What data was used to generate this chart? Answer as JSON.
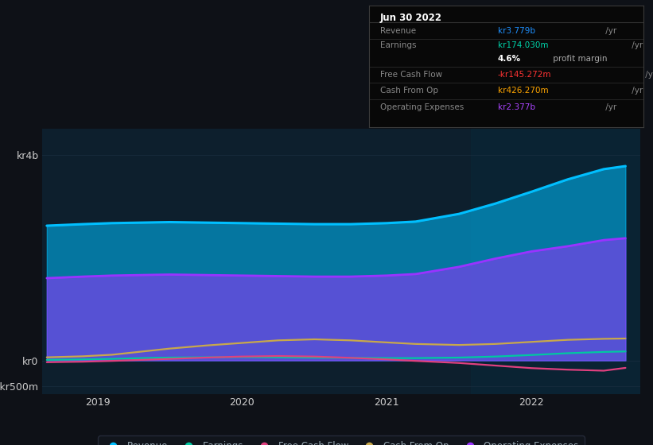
{
  "bg_color": "#0e1117",
  "plot_bg_color": "#0d1f2d",
  "yticks_labels": [
    "kr4b",
    "kr0",
    "-kr500m"
  ],
  "yticks_values": [
    4000000000.0,
    0,
    -500000000.0
  ],
  "ylim": [
    -650000000.0,
    4500000000.0
  ],
  "xlim_start": 2018.62,
  "xlim_end": 2022.75,
  "xtick_labels": [
    "2019",
    "2020",
    "2021",
    "2022"
  ],
  "xtick_positions": [
    2019,
    2020,
    2021,
    2022
  ],
  "series_order": [
    "Revenue",
    "Operating Expenses",
    "Cash From Op",
    "Earnings",
    "Free Cash Flow"
  ],
  "series": {
    "Revenue": {
      "color": "#00bfff",
      "fill": true,
      "fill_alpha": 0.55,
      "linewidth": 2.2,
      "x": [
        2018.65,
        2018.9,
        2019.1,
        2019.3,
        2019.5,
        2019.75,
        2020.0,
        2020.25,
        2020.5,
        2020.75,
        2021.0,
        2021.2,
        2021.5,
        2021.75,
        2022.0,
        2022.25,
        2022.5,
        2022.65
      ],
      "y": [
        2620000000.0,
        2650000000.0,
        2670000000.0,
        2680000000.0,
        2690000000.0,
        2680000000.0,
        2670000000.0,
        2660000000.0,
        2650000000.0,
        2650000000.0,
        2670000000.0,
        2700000000.0,
        2850000000.0,
        3050000000.0,
        3280000000.0,
        3520000000.0,
        3720000000.0,
        3779000000.0
      ]
    },
    "Operating Expenses": {
      "color": "#9933ff",
      "fill": true,
      "fill_alpha": 0.55,
      "linewidth": 2.0,
      "x": [
        2018.65,
        2018.9,
        2019.1,
        2019.3,
        2019.5,
        2019.75,
        2020.0,
        2020.25,
        2020.5,
        2020.75,
        2021.0,
        2021.2,
        2021.5,
        2021.75,
        2022.0,
        2022.25,
        2022.5,
        2022.65
      ],
      "y": [
        1600000000.0,
        1630000000.0,
        1650000000.0,
        1660000000.0,
        1670000000.0,
        1660000000.0,
        1650000000.0,
        1640000000.0,
        1630000000.0,
        1630000000.0,
        1650000000.0,
        1680000000.0,
        1820000000.0,
        1980000000.0,
        2120000000.0,
        2220000000.0,
        2340000000.0,
        2377000000.0
      ]
    },
    "Cash From Op": {
      "color": "#c8a84b",
      "fill": false,
      "linewidth": 1.6,
      "x": [
        2018.65,
        2018.9,
        2019.1,
        2019.3,
        2019.5,
        2019.75,
        2020.0,
        2020.25,
        2020.5,
        2020.75,
        2021.0,
        2021.2,
        2021.5,
        2021.75,
        2022.0,
        2022.25,
        2022.5,
        2022.65
      ],
      "y": [
        60000000.0,
        80000000.0,
        110000000.0,
        170000000.0,
        230000000.0,
        290000000.0,
        340000000.0,
        390000000.0,
        410000000.0,
        390000000.0,
        350000000.0,
        320000000.0,
        300000000.0,
        320000000.0,
        360000000.0,
        400000000.0,
        420000000.0,
        426000000.0
      ]
    },
    "Earnings": {
      "color": "#00c8a0",
      "fill": false,
      "linewidth": 1.6,
      "x": [
        2018.65,
        2018.9,
        2019.1,
        2019.3,
        2019.5,
        2019.75,
        2020.0,
        2020.25,
        2020.5,
        2020.75,
        2021.0,
        2021.2,
        2021.5,
        2021.75,
        2022.0,
        2022.25,
        2022.5,
        2022.65
      ],
      "y": [
        10000000.0,
        20000000.0,
        30000000.0,
        45000000.0,
        55000000.0,
        60000000.0,
        65000000.0,
        60000000.0,
        55000000.0,
        50000000.0,
        45000000.0,
        45000000.0,
        55000000.0,
        75000000.0,
        105000000.0,
        140000000.0,
        165000000.0,
        174000000.0
      ]
    },
    "Free Cash Flow": {
      "color": "#e0407f",
      "fill": false,
      "linewidth": 1.6,
      "x": [
        2018.65,
        2018.9,
        2019.1,
        2019.3,
        2019.5,
        2019.75,
        2020.0,
        2020.25,
        2020.5,
        2020.75,
        2021.0,
        2021.2,
        2021.5,
        2021.75,
        2022.0,
        2022.25,
        2022.5,
        2022.65
      ],
      "y": [
        -35000000.0,
        -25000000.0,
        -10000000.0,
        10000000.0,
        30000000.0,
        55000000.0,
        75000000.0,
        85000000.0,
        75000000.0,
        50000000.0,
        20000000.0,
        -10000000.0,
        -50000000.0,
        -100000000.0,
        -150000000.0,
        -180000000.0,
        -200000000.0,
        -145200000.0
      ]
    }
  },
  "highlight_x_start": 2021.58,
  "highlight_color": "#0a2535",
  "highlight_alpha": 0.8,
  "tooltip": {
    "title": "Jun 30 2022",
    "rows": [
      {
        "label": "Revenue",
        "value": "kr3.779b",
        "suffix": " /yr",
        "value_color": "#1e90ff",
        "has_separator": true
      },
      {
        "label": "Earnings",
        "value": "kr174.030m",
        "suffix": " /yr",
        "value_color": "#00d4aa",
        "has_separator": false
      },
      {
        "label": "",
        "value": "4.6%",
        "suffix": " profit margin",
        "value_color": "#ffffff",
        "bold_val": true,
        "suffix_color": "#aaaaaa",
        "has_separator": true
      },
      {
        "label": "Free Cash Flow",
        "value": "-kr145.272m",
        "suffix": " /yr",
        "value_color": "#ff3333",
        "has_separator": true
      },
      {
        "label": "Cash From Op",
        "value": "kr426.270m",
        "suffix": " /yr",
        "value_color": "#ffa500",
        "has_separator": true
      },
      {
        "label": "Operating Expenses",
        "value": "kr2.377b",
        "suffix": " /yr",
        "value_color": "#aa44ff",
        "has_separator": true
      }
    ]
  },
  "legend_items": [
    {
      "label": "Revenue",
      "color": "#00bfff"
    },
    {
      "label": "Earnings",
      "color": "#00c8a0"
    },
    {
      "label": "Free Cash Flow",
      "color": "#e0407f"
    },
    {
      "label": "Cash From Op",
      "color": "#c8a84b"
    },
    {
      "label": "Operating Expenses",
      "color": "#9933ff"
    }
  ],
  "grid_color": "#1a2e3f",
  "grid_alpha": 0.7,
  "text_color": "#9aabb5",
  "axis_label_color": "#cccccc"
}
